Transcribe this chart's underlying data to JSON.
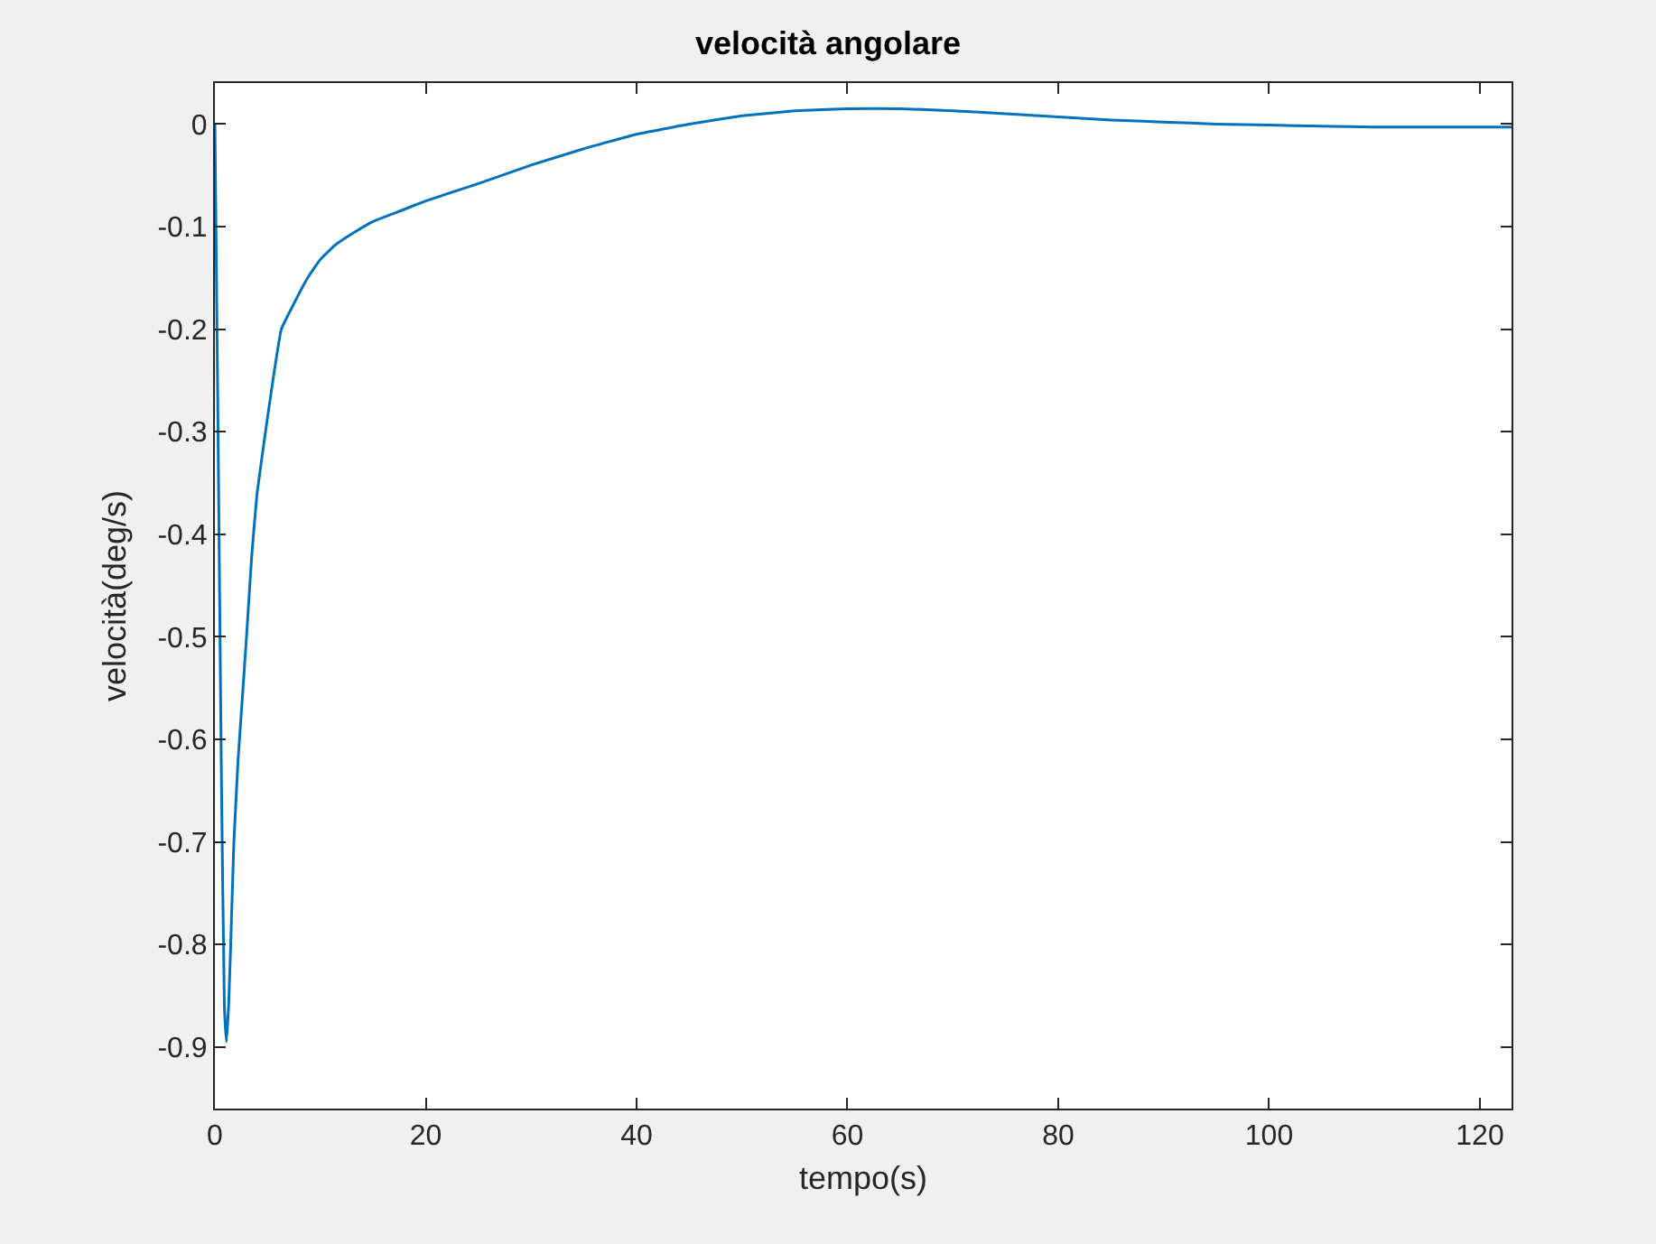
{
  "chart_data": {
    "type": "line",
    "title": "velocità angolare",
    "xlabel": "tempo(s)",
    "ylabel": "velocità(deg/s)",
    "x": [
      0,
      0.3,
      0.6,
      0.9,
      1.1,
      1.3,
      1.5,
      1.8,
      2.2,
      2.6,
      3.0,
      3.5,
      4.0,
      4.8,
      5.5,
      6.3,
      7.5,
      8.8,
      10,
      11.4,
      13,
      15,
      17.5,
      20,
      25,
      30,
      35,
      40,
      45,
      50,
      55,
      60,
      65,
      70,
      75,
      80,
      85,
      90,
      95,
      100,
      105,
      110,
      115,
      123
    ],
    "series": [
      {
        "color": "#0072bd",
        "values": [
          0,
          -0.3,
          -0.62,
          -0.86,
          -0.895,
          -0.86,
          -0.8,
          -0.7,
          -0.62,
          -0.56,
          -0.5,
          -0.42,
          -0.36,
          -0.3,
          -0.25,
          -0.2,
          -0.175,
          -0.15,
          -0.132,
          -0.118,
          -0.107,
          -0.095,
          -0.085,
          -0.075,
          -0.058,
          -0.04,
          -0.024,
          -0.01,
          0.0,
          0.008,
          0.013,
          0.015,
          0.015,
          0.013,
          0.01,
          0.007,
          0.004,
          0.002,
          0.0,
          -0.001,
          -0.002,
          -0.003,
          -0.003,
          -0.003
        ]
      }
    ],
    "xlim": [
      0,
      123
    ],
    "ylim": [
      -0.96,
      0.04
    ],
    "xticks": [
      0,
      20,
      40,
      60,
      80,
      100,
      120
    ],
    "yticks": [
      0,
      -0.1,
      -0.2,
      -0.3,
      -0.4,
      -0.5,
      -0.6,
      -0.7,
      -0.8,
      -0.9
    ]
  }
}
